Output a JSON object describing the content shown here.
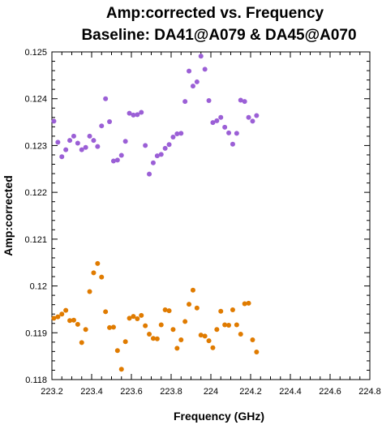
{
  "chart_data": {
    "type": "scatter",
    "title": "Amp:corrected vs. Frequency",
    "subtitle": "Baseline: DA41@A079 & DA45@A070",
    "xlabel": "Frequency (GHz)",
    "ylabel": "Amp:corrected",
    "xlim": [
      223.2,
      224.8
    ],
    "ylim": [
      0.118,
      0.125
    ],
    "x_ticks": [
      "223.2",
      "223.4",
      "223.6",
      "223.8",
      "224",
      "224.2",
      "224.4",
      "224.6",
      "224.8"
    ],
    "y_ticks": [
      "0.118",
      "0.119",
      "0.12",
      "0.121",
      "0.122",
      "0.123",
      "0.124",
      "0.125"
    ],
    "grid": false,
    "legend": "none",
    "series": [
      {
        "color": "#9b5fd6",
        "points": [
          [
            223.21,
            0.12352
          ],
          [
            223.23,
            0.12307
          ],
          [
            223.25,
            0.12276
          ],
          [
            223.27,
            0.12291
          ],
          [
            223.29,
            0.12311
          ],
          [
            223.31,
            0.1232
          ],
          [
            223.33,
            0.12305
          ],
          [
            223.35,
            0.12291
          ],
          [
            223.37,
            0.12296
          ],
          [
            223.39,
            0.1232
          ],
          [
            223.41,
            0.12311
          ],
          [
            223.43,
            0.12298
          ],
          [
            223.45,
            0.12342
          ],
          [
            223.47,
            0.124
          ],
          [
            223.49,
            0.12351
          ],
          [
            223.51,
            0.12267
          ],
          [
            223.53,
            0.12269
          ],
          [
            223.55,
            0.12279
          ],
          [
            223.57,
            0.12309
          ],
          [
            223.59,
            0.12369
          ],
          [
            223.61,
            0.12365
          ],
          [
            223.63,
            0.12366
          ],
          [
            223.65,
            0.12371
          ],
          [
            223.67,
            0.123
          ],
          [
            223.69,
            0.12239
          ],
          [
            223.71,
            0.12263
          ],
          [
            223.73,
            0.12278
          ],
          [
            223.75,
            0.12281
          ],
          [
            223.77,
            0.12294
          ],
          [
            223.79,
            0.12302
          ],
          [
            223.81,
            0.12318
          ],
          [
            223.83,
            0.12325
          ],
          [
            223.85,
            0.12326
          ],
          [
            223.87,
            0.12394
          ],
          [
            223.89,
            0.12459
          ],
          [
            223.91,
            0.12427
          ],
          [
            223.93,
            0.12436
          ],
          [
            223.95,
            0.12491
          ],
          [
            223.97,
            0.12463
          ],
          [
            223.99,
            0.12396
          ],
          [
            224.01,
            0.12349
          ],
          [
            224.03,
            0.12353
          ],
          [
            224.05,
            0.1236
          ],
          [
            224.07,
            0.12339
          ],
          [
            224.09,
            0.12327
          ],
          [
            224.11,
            0.12303
          ],
          [
            224.13,
            0.12326
          ],
          [
            224.15,
            0.12397
          ],
          [
            224.17,
            0.12394
          ],
          [
            224.19,
            0.1236
          ],
          [
            224.21,
            0.12352
          ],
          [
            224.23,
            0.12364
          ]
        ]
      },
      {
        "color": "#e07b00",
        "points": [
          [
            223.21,
            0.11931
          ],
          [
            223.23,
            0.11934
          ],
          [
            223.25,
            0.1194
          ],
          [
            223.27,
            0.11948
          ],
          [
            223.29,
            0.11926
          ],
          [
            223.31,
            0.11927
          ],
          [
            223.33,
            0.11918
          ],
          [
            223.35,
            0.11879
          ],
          [
            223.37,
            0.11907
          ],
          [
            223.39,
            0.11988
          ],
          [
            223.41,
            0.12028
          ],
          [
            223.43,
            0.12048
          ],
          [
            223.45,
            0.12019
          ],
          [
            223.47,
            0.11945
          ],
          [
            223.49,
            0.11911
          ],
          [
            223.51,
            0.11912
          ],
          [
            223.53,
            0.11862
          ],
          [
            223.55,
            0.11822
          ],
          [
            223.57,
            0.11881
          ],
          [
            223.59,
            0.11931
          ],
          [
            223.61,
            0.11935
          ],
          [
            223.63,
            0.1193
          ],
          [
            223.65,
            0.11937
          ],
          [
            223.67,
            0.11915
          ],
          [
            223.69,
            0.11897
          ],
          [
            223.71,
            0.11888
          ],
          [
            223.73,
            0.11887
          ],
          [
            223.75,
            0.11917
          ],
          [
            223.77,
            0.11949
          ],
          [
            223.79,
            0.11947
          ],
          [
            223.81,
            0.11907
          ],
          [
            223.83,
            0.11867
          ],
          [
            223.85,
            0.11885
          ],
          [
            223.87,
            0.11924
          ],
          [
            223.89,
            0.11961
          ],
          [
            223.91,
            0.11991
          ],
          [
            223.93,
            0.11953
          ],
          [
            223.95,
            0.11895
          ],
          [
            223.97,
            0.11893
          ],
          [
            223.99,
            0.11883
          ],
          [
            224.01,
            0.11868
          ],
          [
            224.03,
            0.11907
          ],
          [
            224.05,
            0.11946
          ],
          [
            224.07,
            0.11917
          ],
          [
            224.09,
            0.11916
          ],
          [
            224.11,
            0.11949
          ],
          [
            224.13,
            0.11917
          ],
          [
            224.15,
            0.11897
          ],
          [
            224.17,
            0.11962
          ],
          [
            224.19,
            0.11963
          ],
          [
            224.21,
            0.11885
          ],
          [
            224.23,
            0.11859
          ]
        ]
      }
    ]
  }
}
